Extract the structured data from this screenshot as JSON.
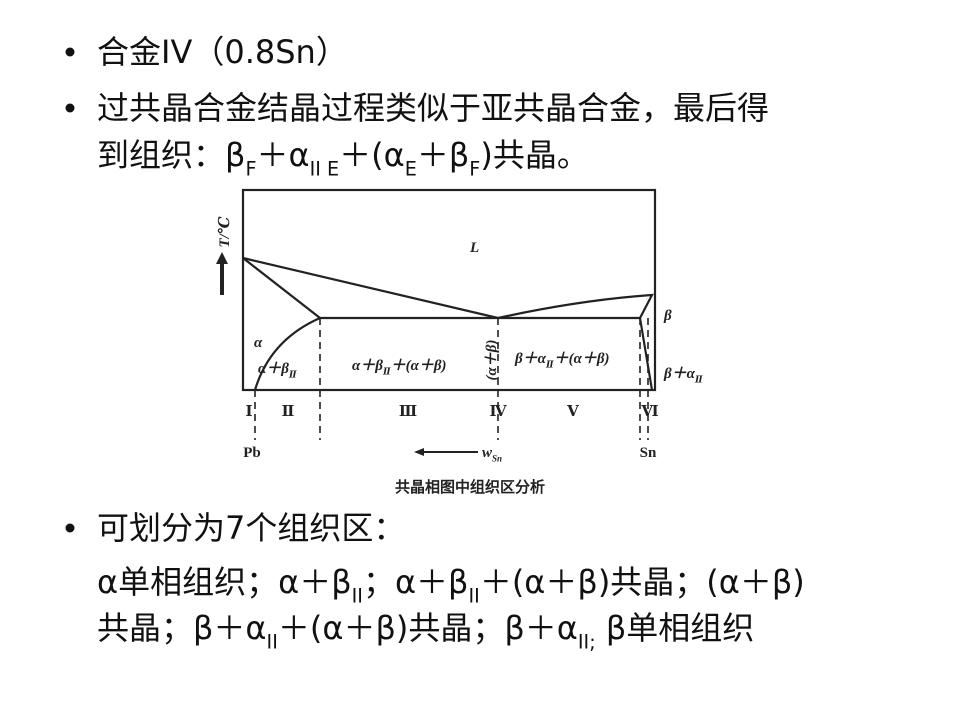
{
  "bullets": [
    {
      "lines": [
        [
          "合金IV（0.8Sn）"
        ]
      ]
    },
    {
      "lines": [
        [
          "过共晶合金结晶过程类似于亚共晶合金，最后得"
        ],
        [
          "到组织：β",
          "F",
          "＋α",
          "II E",
          "＋(α",
          "E",
          "＋β",
          "F",
          ")共晶。"
        ]
      ]
    },
    {
      "lines": [
        [
          "可划分为7个组织区："
        ]
      ]
    }
  ],
  "paragraph": [
    [
      "α单相组织；α＋β",
      "II",
      "；α＋β",
      "II",
      "＋(α＋β)共晶；(α＋β)"
    ],
    [
      "共晶；β＋α",
      "II",
      "＋(α＋β)共晶；β＋α",
      "II;",
      " β单相组织"
    ]
  ],
  "figure": {
    "y_axis_label": "T/℃",
    "regions": [
      [
        "L"
      ],
      [
        "α"
      ],
      [
        "α＋β",
        "Ⅱ"
      ],
      [
        "α＋β",
        "Ⅱ",
        "＋(α＋β)"
      ],
      [
        "(α＋β)"
      ],
      [
        "β＋α",
        "Ⅱ",
        "＋(α＋β)"
      ],
      [
        "β"
      ],
      [
        "β＋α",
        "Ⅱ"
      ]
    ],
    "zones": [
      "Ⅰ",
      "Ⅱ",
      "Ⅲ",
      "Ⅳ",
      "Ⅴ",
      "Ⅵ"
    ],
    "left_end": "Pb",
    "right_end": "Sn",
    "x_axis_label": [
      "w",
      "Sn"
    ],
    "caption": "共晶相图中组织区分析"
  }
}
